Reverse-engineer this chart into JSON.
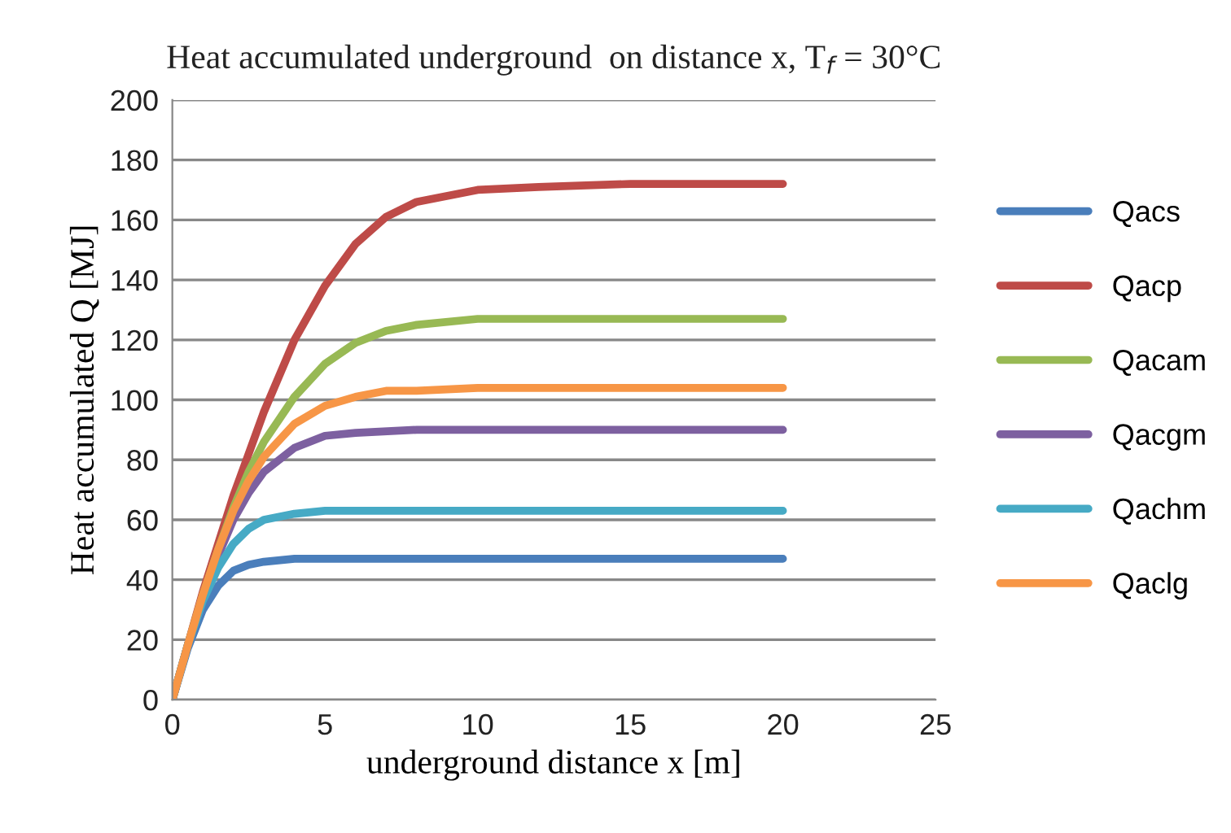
{
  "chart_data": {
    "type": "line",
    "title": "Heat accumulated underground  on distance x, T$_{f}$ = 30°C",
    "xlabel": "underground distance x [m]",
    "ylabel": "Heat accumulated Q [MJ]",
    "xlim": [
      0,
      25
    ],
    "xticks": [
      0,
      5,
      10,
      15,
      20,
      25
    ],
    "ylim": [
      0,
      200
    ],
    "yticks": [
      0,
      20,
      40,
      60,
      80,
      100,
      120,
      140,
      160,
      180,
      200
    ],
    "grid": "y",
    "legend": "right",
    "marker": "none",
    "line_style": "solid",
    "series": [
      {
        "name": "Qacs",
        "color": "#4a7ebb",
        "x": [
          0,
          0.5,
          1,
          1.5,
          2,
          2.5,
          3,
          4,
          5,
          6,
          8,
          10,
          15,
          20
        ],
        "values": [
          0,
          17,
          30,
          38,
          43,
          45,
          46,
          47,
          47,
          47,
          47,
          47,
          47,
          47
        ]
      },
      {
        "name": "Qacp",
        "color": "#be4b48",
        "x": [
          0,
          0.5,
          1,
          1.5,
          2,
          2.5,
          3,
          4,
          5,
          6,
          7,
          8,
          10,
          12,
          15,
          20
        ],
        "values": [
          0,
          18,
          36,
          52,
          68,
          82,
          96,
          120,
          138,
          152,
          161,
          166,
          170,
          171,
          172,
          172
        ]
      },
      {
        "name": "Qacam",
        "color": "#98b954",
        "x": [
          0,
          0.5,
          1,
          1.5,
          2,
          2.5,
          3,
          4,
          5,
          6,
          7,
          8,
          10,
          12,
          15,
          20
        ],
        "values": [
          0,
          18,
          35,
          50,
          64,
          76,
          86,
          101,
          112,
          119,
          123,
          125,
          127,
          127,
          127,
          127
        ]
      },
      {
        "name": "Qacgm",
        "color": "#7d60a0",
        "x": [
          0,
          0.5,
          1,
          1.5,
          2,
          2.5,
          3,
          4,
          5,
          6,
          8,
          10,
          15,
          20
        ],
        "values": [
          0,
          18,
          34,
          48,
          60,
          69,
          76,
          84,
          88,
          89,
          90,
          90,
          90,
          90
        ]
      },
      {
        "name": "Qachm",
        "color": "#46aac5",
        "x": [
          0,
          0.5,
          1,
          1.5,
          2,
          2.5,
          3,
          4,
          5,
          6,
          8,
          10,
          15,
          20
        ],
        "values": [
          0,
          18,
          33,
          44,
          52,
          57,
          60,
          62,
          63,
          63,
          63,
          63,
          63,
          63
        ]
      },
      {
        "name": "Qaclg",
        "color": "#f79646",
        "x": [
          0,
          0.5,
          1,
          1.5,
          2,
          2.5,
          3,
          4,
          5,
          6,
          7,
          8,
          10,
          15,
          20
        ],
        "values": [
          0,
          18,
          35,
          50,
          63,
          73,
          81,
          92,
          98,
          101,
          103,
          103,
          104,
          104,
          104
        ]
      }
    ]
  }
}
